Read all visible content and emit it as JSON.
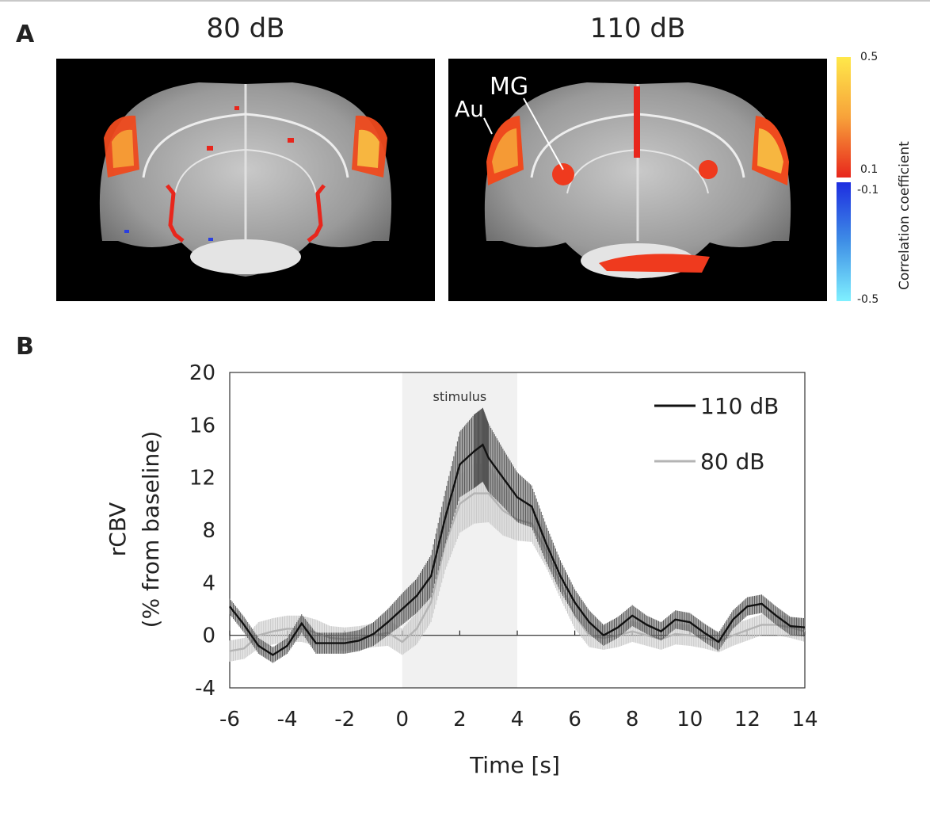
{
  "panel_a": {
    "letter": "A",
    "maps": [
      {
        "title": "80 dB"
      },
      {
        "title": "110 dB",
        "annotations": [
          "MG",
          "Au"
        ]
      }
    ],
    "colorbar": {
      "title": "Correlation coefficient",
      "labels": [
        "0.5",
        "0.1",
        "-0.1",
        "-0.5"
      ],
      "positive_colors": [
        "#ffe84a",
        "#f7a23a",
        "#e8261c"
      ],
      "negative_colors": [
        "#1d2de0",
        "#3f8fe6",
        "#7ff0ff"
      ]
    }
  },
  "panel_b": {
    "letter": "B"
  },
  "chart_data": {
    "type": "line",
    "xlabel": "Time [s]",
    "ylabel_line1": "rCBV",
    "ylabel_line2": "(% from baseline)",
    "xlim": [
      -6,
      14
    ],
    "ylim": [
      -4,
      20
    ],
    "xticks": [
      -6,
      -4,
      -2,
      0,
      2,
      4,
      6,
      8,
      10,
      12,
      14
    ],
    "yticks": [
      -4,
      0,
      4,
      8,
      12,
      16,
      20
    ],
    "stimulus": {
      "label": "stimulus",
      "start": 0,
      "end": 4
    },
    "legend": "top-right",
    "series": [
      {
        "name": "110 dB",
        "color": "#111111",
        "x": [
          -6,
          -5.5,
          -5,
          -4.5,
          -4,
          -3.5,
          -3,
          -2.5,
          -2,
          -1.5,
          -1,
          -0.5,
          0,
          0.5,
          1,
          1.5,
          2,
          2.5,
          2.8,
          3,
          3.5,
          4,
          4.5,
          5,
          5.5,
          6,
          6.5,
          7,
          7.5,
          8,
          8.5,
          9,
          9.5,
          10,
          10.5,
          11,
          11.5,
          12,
          12.5,
          13,
          13.5,
          14
        ],
        "y": [
          2.2,
          0.8,
          -0.8,
          -1.5,
          -0.8,
          0.9,
          -0.6,
          -0.6,
          -0.6,
          -0.4,
          0.1,
          1.0,
          2.0,
          3.0,
          4.5,
          9.0,
          13.0,
          14.0,
          14.5,
          13.5,
          12.0,
          10.5,
          9.8,
          7.0,
          4.5,
          2.5,
          1.0,
          0.0,
          0.6,
          1.5,
          0.8,
          0.3,
          1.2,
          1.0,
          0.2,
          -0.5,
          1.2,
          2.2,
          2.4,
          1.5,
          0.7,
          0.6
        ],
        "error": [
          0.6,
          0.6,
          0.6,
          0.6,
          0.6,
          0.7,
          0.8,
          0.8,
          0.8,
          0.8,
          0.9,
          1.0,
          1.2,
          1.3,
          1.6,
          2.0,
          2.5,
          2.8,
          2.8,
          2.6,
          2.2,
          1.9,
          1.6,
          1.4,
          1.2,
          1.0,
          0.9,
          0.8,
          0.8,
          0.8,
          0.7,
          0.7,
          0.7,
          0.7,
          0.7,
          0.7,
          0.7,
          0.7,
          0.7,
          0.7,
          0.7,
          0.7
        ]
      },
      {
        "name": "80 dB",
        "color": "#b4b4b4",
        "x": [
          -6,
          -5.5,
          -5,
          -4.5,
          -4,
          -3.5,
          -3,
          -2.5,
          -2,
          -1.5,
          -1,
          -0.5,
          0,
          0.5,
          1,
          1.5,
          2,
          2.5,
          3,
          3.5,
          4,
          4.5,
          5,
          5.5,
          6,
          6.5,
          7,
          7.5,
          8,
          8.5,
          9,
          9.5,
          10,
          10.5,
          11,
          11.5,
          12,
          12.5,
          13,
          13.5,
          14
        ],
        "y": [
          -1.2,
          -1.0,
          0.0,
          0.3,
          0.5,
          0.5,
          0.2,
          -0.2,
          -0.3,
          -0.2,
          0.0,
          0.2,
          -0.5,
          0.5,
          2.5,
          7.0,
          10.0,
          10.8,
          10.8,
          9.5,
          8.8,
          8.5,
          6.5,
          4.0,
          1.5,
          0.0,
          -0.2,
          0.0,
          0.3,
          0.0,
          -0.3,
          0.1,
          0.0,
          -0.2,
          -0.5,
          0.0,
          0.4,
          0.8,
          0.8,
          0.6,
          0.3
        ],
        "error": [
          0.8,
          0.8,
          1.0,
          1.0,
          1.0,
          1.0,
          1.0,
          0.9,
          0.9,
          0.9,
          0.9,
          1.0,
          1.0,
          1.2,
          1.5,
          2.0,
          2.2,
          2.3,
          2.2,
          1.9,
          1.6,
          1.4,
          1.3,
          1.2,
          1.0,
          0.9,
          0.9,
          0.9,
          0.8,
          0.8,
          0.8,
          0.8,
          0.8,
          0.8,
          0.8,
          0.8,
          0.8,
          0.8,
          0.8,
          0.8,
          0.8
        ]
      }
    ]
  }
}
